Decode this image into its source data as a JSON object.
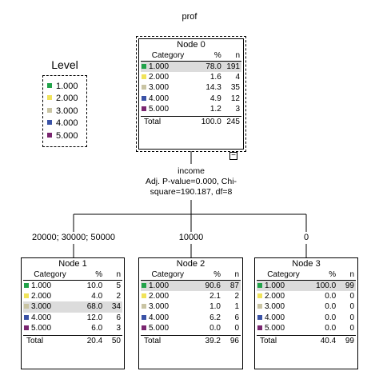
{
  "tree": {
    "target_label": "prof"
  },
  "legend": {
    "title": "Level",
    "items": [
      {
        "label": "1.000",
        "color": "#22a34a"
      },
      {
        "label": "2.000",
        "color": "#f0e35a"
      },
      {
        "label": "3.000",
        "color": "#c9c4a3"
      },
      {
        "label": "4.000",
        "color": "#3a52a6"
      },
      {
        "label": "5.000",
        "color": "#7a2670"
      }
    ]
  },
  "columns": {
    "category": "Category",
    "percent": "%",
    "n": "n"
  },
  "total_label": "Total",
  "collapse_symbol": "−",
  "split": {
    "variable": "income",
    "line2": "Adj. P-value=0.000, Chi-",
    "line3": "square=190.187, df=8"
  },
  "branches": [
    "20000; 30000; 50000",
    "10000",
    "0"
  ],
  "nodes": [
    {
      "title": "Node 0",
      "rows": [
        {
          "cat": "1.000",
          "pct": "78.0",
          "n": "191"
        },
        {
          "cat": "2.000",
          "pct": "1.6",
          "n": "4"
        },
        {
          "cat": "3.000",
          "pct": "14.3",
          "n": "35"
        },
        {
          "cat": "4.000",
          "pct": "4.9",
          "n": "12"
        },
        {
          "cat": "5.000",
          "pct": "1.2",
          "n": "3"
        }
      ],
      "total": {
        "pct": "100.0",
        "n": "245"
      }
    },
    {
      "title": "Node 1",
      "rows": [
        {
          "cat": "1.000",
          "pct": "10.0",
          "n": "5"
        },
        {
          "cat": "2.000",
          "pct": "4.0",
          "n": "2"
        },
        {
          "cat": "3.000",
          "pct": "68.0",
          "n": "34"
        },
        {
          "cat": "4.000",
          "pct": "12.0",
          "n": "6"
        },
        {
          "cat": "5.000",
          "pct": "6.0",
          "n": "3"
        }
      ],
      "total": {
        "pct": "20.4",
        "n": "50"
      }
    },
    {
      "title": "Node 2",
      "rows": [
        {
          "cat": "1.000",
          "pct": "90.6",
          "n": "87"
        },
        {
          "cat": "2.000",
          "pct": "2.1",
          "n": "2"
        },
        {
          "cat": "3.000",
          "pct": "1.0",
          "n": "1"
        },
        {
          "cat": "4.000",
          "pct": "6.2",
          "n": "6"
        },
        {
          "cat": "5.000",
          "pct": "0.0",
          "n": "0"
        }
      ],
      "total": {
        "pct": "39.2",
        "n": "96"
      }
    },
    {
      "title": "Node 3",
      "rows": [
        {
          "cat": "1.000",
          "pct": "100.0",
          "n": "99"
        },
        {
          "cat": "2.000",
          "pct": "0.0",
          "n": "0"
        },
        {
          "cat": "3.000",
          "pct": "0.0",
          "n": "0"
        },
        {
          "cat": "4.000",
          "pct": "0.0",
          "n": "0"
        },
        {
          "cat": "5.000",
          "pct": "0.0",
          "n": "0"
        }
      ],
      "total": {
        "pct": "40.4",
        "n": "99"
      }
    }
  ]
}
